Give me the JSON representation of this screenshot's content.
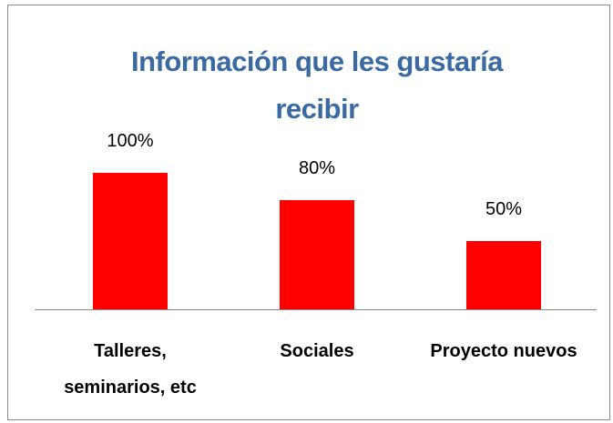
{
  "chart_data": {
    "type": "bar",
    "title": "Información que les gustaría recibir",
    "categories": [
      "Talleres, seminarios, etc",
      "Sociales",
      "Proyecto nuevos"
    ],
    "values": [
      100,
      80,
      50
    ],
    "value_labels": [
      "100%",
      "80%",
      "50%"
    ],
    "color": "#ff0000"
  }
}
